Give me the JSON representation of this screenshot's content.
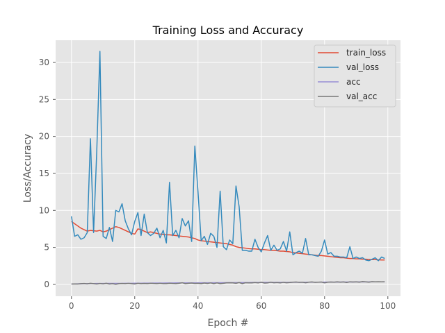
{
  "chart_data": {
    "type": "line",
    "title": "Training Loss and Accuracy",
    "xlabel": "Epoch #",
    "ylabel": "Loss/Accuracy",
    "xlim": [
      -5,
      104
    ],
    "ylim": [
      -1.6,
      33
    ],
    "xticks": [
      0,
      20,
      40,
      60,
      80,
      100
    ],
    "yticks": [
      0,
      5,
      10,
      15,
      20,
      25,
      30
    ],
    "grid": true,
    "legend_position": "top-right",
    "x": [
      0,
      1,
      2,
      3,
      4,
      5,
      6,
      7,
      8,
      9,
      10,
      11,
      12,
      13,
      14,
      15,
      16,
      17,
      18,
      19,
      20,
      21,
      22,
      23,
      24,
      25,
      26,
      27,
      28,
      29,
      30,
      31,
      32,
      33,
      34,
      35,
      36,
      37,
      38,
      39,
      40,
      41,
      42,
      43,
      44,
      45,
      46,
      47,
      48,
      49,
      50,
      51,
      52,
      53,
      54,
      55,
      56,
      57,
      58,
      59,
      60,
      61,
      62,
      63,
      64,
      65,
      66,
      67,
      68,
      69,
      70,
      71,
      72,
      73,
      74,
      75,
      76,
      77,
      78,
      79,
      80,
      81,
      82,
      83,
      84,
      85,
      86,
      87,
      88,
      89,
      90,
      91,
      92,
      93,
      94,
      95,
      96,
      97,
      98,
      99
    ],
    "series": [
      {
        "name": "train_loss",
        "color": "#e24a33",
        "values": [
          8.5,
          8.2,
          7.9,
          7.6,
          7.4,
          7.2,
          7.3,
          7.25,
          7.2,
          7.3,
          7.1,
          7.2,
          7.4,
          7.6,
          7.8,
          7.7,
          7.5,
          7.3,
          7.1,
          6.9,
          6.8,
          7.5,
          7.4,
          7.2,
          7.0,
          7.1,
          7.0,
          6.9,
          6.8,
          6.75,
          6.7,
          6.7,
          6.65,
          6.6,
          6.55,
          6.5,
          6.45,
          6.4,
          6.3,
          6.2,
          6.0,
          5.9,
          5.85,
          5.8,
          5.75,
          5.7,
          5.65,
          5.6,
          5.55,
          5.5,
          5.4,
          5.3,
          5.1,
          5.0,
          4.95,
          4.9,
          4.85,
          4.8,
          4.8,
          4.75,
          4.7,
          4.7,
          4.65,
          4.6,
          4.6,
          4.55,
          4.5,
          4.5,
          4.45,
          4.4,
          4.3,
          4.25,
          4.2,
          4.15,
          4.1,
          4.05,
          4.0,
          3.95,
          3.9,
          3.9,
          3.85,
          3.8,
          3.75,
          3.7,
          3.65,
          3.6,
          3.6,
          3.55,
          3.5,
          3.5,
          3.45,
          3.45,
          3.4,
          3.4,
          3.38,
          3.35,
          3.35,
          3.32,
          3.3,
          3.3
        ]
      },
      {
        "name": "val_loss",
        "color": "#348abd",
        "values": [
          9.2,
          6.5,
          6.7,
          6.1,
          6.3,
          7.0,
          19.7,
          7.0,
          18.0,
          31.5,
          6.5,
          6.2,
          7.7,
          5.8,
          10.0,
          9.8,
          10.9,
          8.6,
          7.5,
          6.7,
          8.5,
          9.7,
          6.6,
          9.5,
          7.0,
          6.6,
          6.9,
          7.6,
          6.3,
          7.3,
          5.6,
          13.8,
          6.6,
          7.3,
          6.3,
          8.9,
          7.9,
          8.6,
          5.8,
          18.7,
          12.5,
          5.9,
          6.5,
          5.4,
          6.9,
          6.5,
          5.0,
          12.6,
          5.1,
          4.7,
          6.0,
          5.5,
          13.3,
          10.5,
          4.6,
          4.6,
          4.5,
          4.5,
          6.1,
          5.0,
          4.4,
          5.6,
          6.6,
          4.6,
          5.3,
          4.6,
          4.8,
          5.8,
          4.5,
          7.1,
          4.0,
          4.3,
          4.5,
          4.2,
          6.2,
          4.0,
          4.0,
          3.9,
          3.8,
          4.5,
          6.0,
          4.1,
          4.3,
          3.8,
          3.8,
          3.7,
          3.7,
          3.6,
          5.1,
          3.5,
          3.7,
          3.5,
          3.6,
          3.3,
          3.2,
          3.4,
          3.6,
          3.2,
          3.7,
          3.5
        ]
      },
      {
        "name": "acc",
        "color": "#988ed5",
        "values": [
          0.05,
          0.06,
          0.08,
          0.09,
          0.1,
          0.1,
          0.11,
          0.11,
          0.12,
          0.12,
          0.12,
          0.13,
          0.13,
          0.13,
          0.14,
          0.14,
          0.14,
          0.15,
          0.15,
          0.15,
          0.16,
          0.16,
          0.16,
          0.17,
          0.17,
          0.17,
          0.18,
          0.18,
          0.18,
          0.18,
          0.19,
          0.19,
          0.19,
          0.2,
          0.2,
          0.2,
          0.2,
          0.21,
          0.21,
          0.21,
          0.21,
          0.22,
          0.22,
          0.22,
          0.22,
          0.23,
          0.23,
          0.23,
          0.23,
          0.24,
          0.24,
          0.24,
          0.24,
          0.25,
          0.25,
          0.25,
          0.25,
          0.26,
          0.26,
          0.26,
          0.26,
          0.27,
          0.27,
          0.27,
          0.27,
          0.27,
          0.28,
          0.28,
          0.28,
          0.28,
          0.29,
          0.29,
          0.29,
          0.29,
          0.29,
          0.3,
          0.3,
          0.3,
          0.3,
          0.3,
          0.31,
          0.31,
          0.31,
          0.31,
          0.31,
          0.32,
          0.32,
          0.32,
          0.32,
          0.32,
          0.33,
          0.33,
          0.33,
          0.33,
          0.33,
          0.34,
          0.34,
          0.34,
          0.34,
          0.34
        ]
      },
      {
        "name": "val_acc",
        "color": "#777777",
        "values": [
          0.05,
          0.06,
          0.05,
          0.1,
          0.12,
          0.08,
          0.15,
          0.1,
          0.05,
          0.12,
          0.08,
          0.15,
          0.05,
          0.1,
          0.02,
          0.1,
          0.12,
          0.1,
          0.14,
          0.1,
          0.05,
          0.15,
          0.1,
          0.12,
          0.1,
          0.15,
          0.12,
          0.1,
          0.14,
          0.1,
          0.1,
          0.15,
          0.12,
          0.1,
          0.15,
          0.22,
          0.1,
          0.15,
          0.18,
          0.12,
          0.15,
          0.1,
          0.18,
          0.12,
          0.2,
          0.1,
          0.2,
          0.1,
          0.15,
          0.2,
          0.22,
          0.2,
          0.15,
          0.25,
          0.1,
          0.22,
          0.2,
          0.2,
          0.25,
          0.2,
          0.3,
          0.18,
          0.2,
          0.3,
          0.22,
          0.25,
          0.2,
          0.28,
          0.22,
          0.25,
          0.3,
          0.32,
          0.28,
          0.3,
          0.22,
          0.3,
          0.33,
          0.28,
          0.3,
          0.32,
          0.2,
          0.3,
          0.32,
          0.3,
          0.35,
          0.3,
          0.33,
          0.25,
          0.35,
          0.32,
          0.35,
          0.3,
          0.38,
          0.35,
          0.3,
          0.37,
          0.35,
          0.36,
          0.34,
          0.36
        ]
      }
    ]
  }
}
